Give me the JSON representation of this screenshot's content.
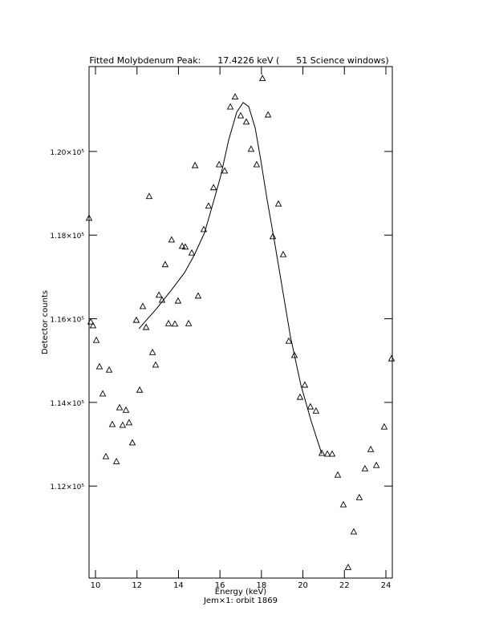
{
  "chart_data": {
    "type": "scatter",
    "title": "Fitted Molybdenum Peak:      17.4226 keV (      51 Science windows)",
    "xlabel": "Energy (keV)",
    "subtitle": "Jem×1: orbit 1869",
    "ylabel": "Detector counts",
    "xlim": [
      9.69,
      24.31
    ],
    "ylim": [
      109800,
      122030
    ],
    "xticks": [
      10,
      12,
      14,
      16,
      18,
      20,
      22,
      24
    ],
    "yticks": [
      {
        "value": 112000,
        "label": "1.12×10⁵"
      },
      {
        "value": 114000,
        "label": "1.14×10⁵"
      },
      {
        "value": 116000,
        "label": "1.16×10⁵"
      },
      {
        "value": 118000,
        "label": "1.18×10⁵"
      },
      {
        "value": 120000,
        "label": "1.20×10⁵"
      }
    ],
    "series": [
      {
        "marker": "triangle",
        "color": "#000000",
        "x": [
          9.69,
          9.77,
          9.88,
          10.04,
          10.19,
          10.35,
          10.5,
          10.66,
          10.81,
          11.01,
          11.16,
          11.31,
          11.47,
          11.62,
          11.78,
          11.97,
          12.13,
          12.28,
          12.44,
          12.59,
          12.75,
          12.9,
          13.06,
          13.21,
          13.36,
          13.52,
          13.67,
          13.83,
          13.98,
          14.18,
          14.33,
          14.49,
          14.64,
          14.8,
          14.95,
          15.22,
          15.45,
          15.69,
          15.96,
          16.23,
          16.5,
          16.73,
          17.0,
          17.27,
          17.5,
          17.77,
          18.05,
          18.32,
          18.55,
          18.82,
          19.05,
          19.32,
          19.59,
          19.86,
          20.09,
          20.36,
          20.63,
          20.91,
          21.18,
          21.41,
          21.68,
          21.95,
          22.18,
          22.45,
          22.72,
          22.99,
          23.27,
          23.54,
          23.92,
          24.27
        ],
        "values": [
          118410,
          115930,
          115840,
          115490,
          114860,
          114210,
          112710,
          114780,
          113480,
          112590,
          113880,
          113460,
          113820,
          113520,
          113040,
          115970,
          114300,
          116300,
          115800,
          118930,
          115200,
          114900,
          116570,
          116450,
          117300,
          115890,
          117890,
          115880,
          116430,
          117740,
          117720,
          115890,
          117580,
          119670,
          116550,
          118140,
          118700,
          119140,
          119690,
          119540,
          121070,
          121310,
          120860,
          120710,
          120060,
          119690,
          121750,
          120880,
          117970,
          118750,
          117540,
          115470,
          115130,
          114130,
          114420,
          113900,
          113800,
          112790,
          112770,
          112770,
          112270,
          111560,
          110060,
          110910,
          111730,
          112420,
          112880,
          112500,
          113420,
          115050
        ]
      },
      {
        "marker": "line",
        "color": "#000000",
        "x": [
          12.09,
          12.94,
          13.71,
          14.29,
          14.76,
          15.26,
          15.65,
          16.03,
          16.42,
          16.81,
          17.12,
          17.39,
          17.7,
          17.97,
          18.28,
          18.62,
          19.01,
          19.4,
          19.9,
          20.4,
          20.91
        ],
        "values": [
          115760,
          116240,
          116720,
          117100,
          117520,
          118060,
          118730,
          119400,
          120270,
          120940,
          121170,
          121070,
          120560,
          119790,
          118830,
          117870,
          116720,
          115570,
          114420,
          113550,
          112770
        ]
      }
    ]
  }
}
